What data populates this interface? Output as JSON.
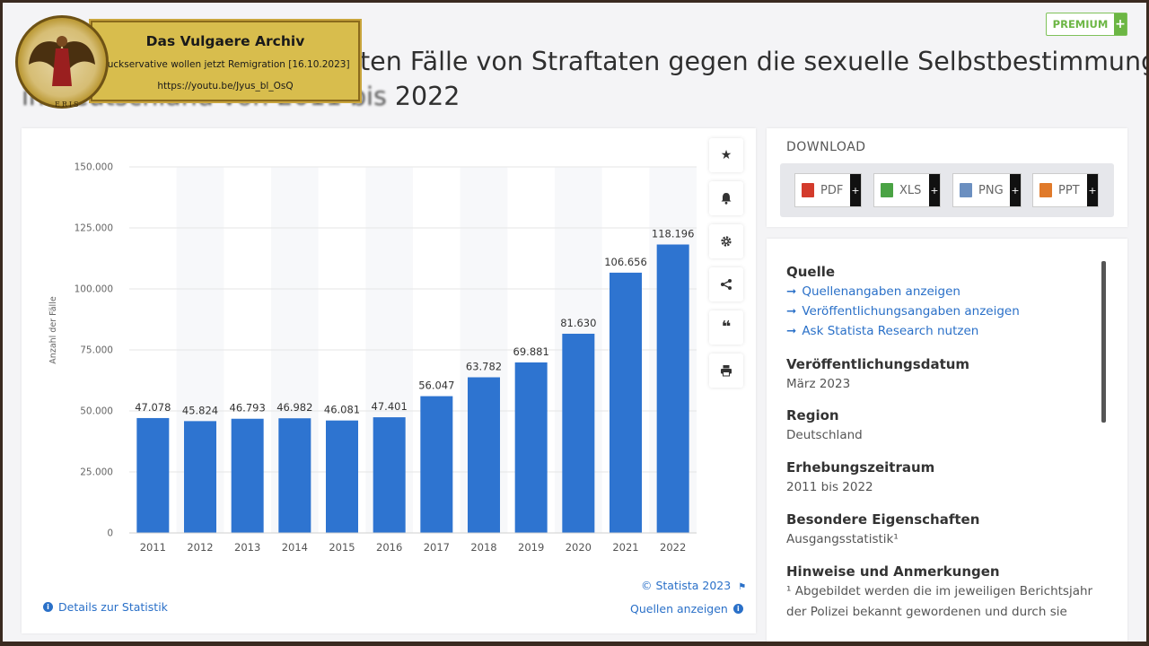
{
  "title": {
    "line1": "ten Fälle von Straftaten gegen die sexuelle Selbstbestimmung",
    "line2_obscured": "in Deutschland von 2011 bis",
    "line2_visible": "2022"
  },
  "premium": {
    "label": "PREMIUM",
    "plus": "+"
  },
  "chart_data": {
    "type": "bar",
    "categories": [
      "2011",
      "2012",
      "2013",
      "2014",
      "2015",
      "2016",
      "2017",
      "2018",
      "2019",
      "2020",
      "2021",
      "2022"
    ],
    "values": [
      47078,
      45824,
      46793,
      46982,
      46081,
      47401,
      56047,
      63782,
      69881,
      81630,
      106656,
      118196
    ],
    "value_labels": [
      "47.078",
      "45.824",
      "46.793",
      "46.982",
      "46.081",
      "47.401",
      "56.047",
      "63.782",
      "69.881",
      "81.630",
      "106.656",
      "118.196"
    ],
    "yticks": [
      0,
      25000,
      50000,
      75000,
      100000,
      125000,
      150000
    ],
    "ytick_labels": [
      "0",
      "25.000",
      "50.000",
      "75.000",
      "100.000",
      "125.000",
      "150.000"
    ],
    "ylim": [
      0,
      150000
    ],
    "ylabel": "Anzahl der Fälle",
    "grid": true,
    "bar_color": "#2e74d0"
  },
  "chart_footer": {
    "copyright": "© Statista 2023",
    "details": "Details zur Statistik",
    "sources": "Quellen anzeigen"
  },
  "tools": [
    "star-icon",
    "bell-icon",
    "gear-icon",
    "share-icon",
    "quote-icon",
    "print-icon"
  ],
  "download": {
    "title": "DOWNLOAD",
    "buttons": [
      {
        "label": "PDF",
        "color": "#d33b2c"
      },
      {
        "label": "XLS",
        "color": "#4aa344"
      },
      {
        "label": "PNG",
        "color": "#6b8fc0"
      },
      {
        "label": "PPT",
        "color": "#e07a2a"
      }
    ]
  },
  "info": {
    "source_heading": "Quelle",
    "links": [
      "Quellenangaben anzeigen",
      "Veröffentlichungsangaben anzeigen",
      "Ask Statista Research nutzen"
    ],
    "pub_date_heading": "Veröffentlichungsdatum",
    "pub_date": "März 2023",
    "region_heading": "Region",
    "region": "Deutschland",
    "period_heading": "Erhebungszeitraum",
    "period": "2011 bis 2022",
    "special_heading": "Besondere Eigenschaften",
    "special": "Ausgangsstatistik¹",
    "notes_heading": "Hinweise und Anmerkungen",
    "notes_line1": "¹ Abgebildet werden die im jeweiligen Berichtsjahr",
    "notes_line2": "der Polizei bekannt gewordenen und durch sie"
  },
  "overlay": {
    "title": "Das Vulgaere Archiv",
    "subtitle": "Cuckservative wollen jetzt Remigration [16.10.2023]",
    "url": "https://youtu.be/Jyus_bl_OsQ",
    "logo_text": "ERIS"
  }
}
